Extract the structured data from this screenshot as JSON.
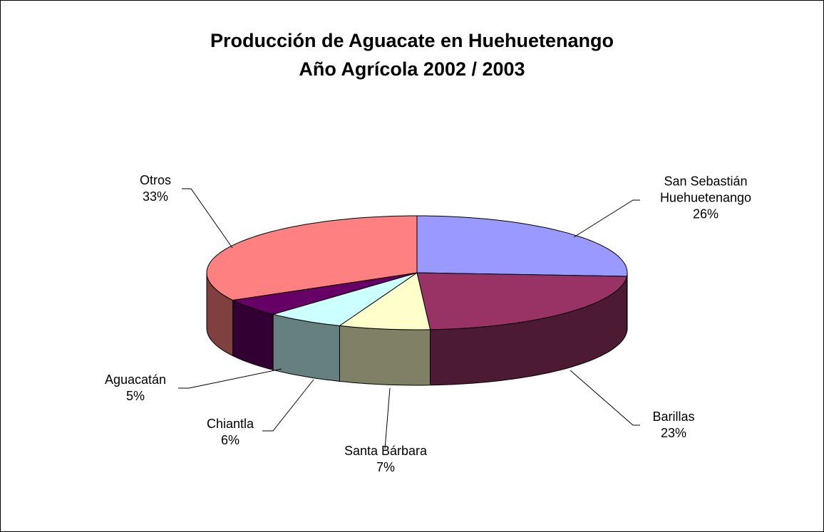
{
  "chart_data": {
    "type": "pie",
    "title": "Producción de Aguacate en Huehuetenango",
    "subtitle": "Año Agrícola 2002 / 2003",
    "categories": [
      "San Sebastián Huehuetenango",
      "Barillas",
      "Santa Bárbara",
      "Chiantla",
      "Aguacatán",
      "Otros"
    ],
    "values": [
      26,
      23,
      7,
      6,
      5,
      33
    ],
    "value_labels": [
      "26%",
      "23%",
      "7%",
      "6%",
      "5%",
      "33%"
    ],
    "colors": [
      "#9999ff",
      "#993366",
      "#ffffcc",
      "#ccffff",
      "#660066",
      "#ff8080"
    ]
  }
}
